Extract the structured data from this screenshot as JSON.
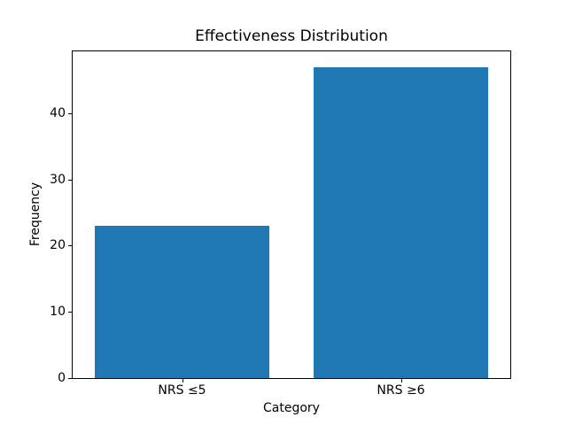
{
  "chart_data": {
    "type": "bar",
    "title": "Effectiveness Distribution",
    "xlabel": "Category",
    "ylabel": "Frequency",
    "categories": [
      "NRS ≤5",
      "NRS ≥6"
    ],
    "values": [
      23,
      47
    ],
    "yticks": [
      0,
      10,
      20,
      30,
      40
    ],
    "ylim": [
      0,
      49.35
    ],
    "bar_color": "#1f77b4",
    "bar_width_fraction": 0.8,
    "grid": false,
    "legend": "none",
    "background_color": "#ffffff",
    "spine_color": "#000000",
    "text_color": "#000000"
  }
}
